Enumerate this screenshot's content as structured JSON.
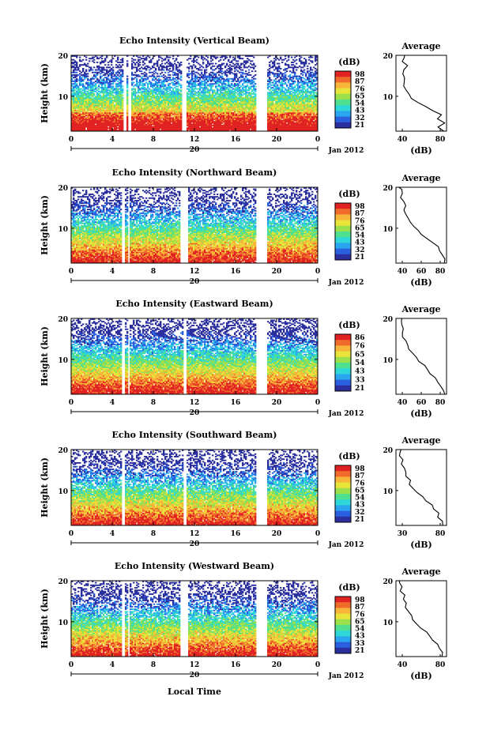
{
  "figure": {
    "xlabel": "Local Time"
  },
  "chart_data": [
    {
      "type": "heatmap",
      "title": "Echo Intensity (Vertical Beam)",
      "ylabel": "Height (km)",
      "xticks": [
        "0",
        "4",
        "8",
        "12",
        "16",
        "20",
        "0"
      ],
      "yticks": [
        "10",
        "20"
      ],
      "date_tick": "20",
      "date_label": "Jan 2012",
      "xlim": [
        0,
        24
      ],
      "ylim": [
        1.5,
        20
      ],
      "gaps": [
        [
          5.1,
          5.35
        ],
        [
          5.55,
          5.8
        ],
        [
          10.7,
          11.3
        ],
        [
          18.0,
          19.0
        ]
      ],
      "cbar": {
        "label": "(dB)",
        "ticks": [
          "98",
          "87",
          "76",
          "65",
          "54",
          "43",
          "32",
          "21"
        ]
      },
      "avg": {
        "title": "Average",
        "xlabel": "(dB)",
        "xticks": [
          "40",
          "80"
        ],
        "xlim": [
          30,
          90
        ],
        "yticks": [
          "10",
          "20"
        ],
        "heights": [
          1.5,
          2.5,
          3.5,
          4.5,
          5.5,
          6.5,
          7.5,
          8.5,
          9.5,
          10.5,
          11.5,
          12.5,
          13.5,
          14.5,
          15.5,
          16.5,
          17.5,
          18.5,
          19.5,
          20
        ],
        "values": [
          85,
          80,
          86,
          78,
          84,
          75,
          66,
          56,
          48,
          44,
          42,
          41,
          40,
          40,
          39,
          41,
          42,
          39,
          38,
          40
        ]
      }
    },
    {
      "type": "heatmap",
      "title": "Echo Intensity (Northward Beam)",
      "ylabel": "Height (km)",
      "xticks": [
        "0",
        "4",
        "8",
        "12",
        "16",
        "20",
        "0"
      ],
      "yticks": [
        "10",
        "20"
      ],
      "date_tick": "20",
      "date_label": "Jan 2012",
      "xlim": [
        0,
        24
      ],
      "ylim": [
        1.5,
        20
      ],
      "gaps": [
        [
          4.95,
          5.2
        ],
        [
          5.5,
          5.7
        ],
        [
          10.6,
          11.4
        ],
        [
          18.0,
          19.0
        ]
      ],
      "cbar": {
        "label": "(dB)",
        "ticks": [
          "98",
          "87",
          "76",
          "65",
          "54",
          "43",
          "32",
          "21"
        ]
      },
      "avg": {
        "title": "Average",
        "xlabel": "(dB)",
        "xticks": [
          "40",
          "60",
          "80"
        ],
        "xlim": [
          30,
          80
        ],
        "yticks": [
          "10",
          "20"
        ],
        "heights": [
          1.5,
          2.5,
          3.5,
          4.5,
          5.5,
          6.5,
          7.5,
          8.5,
          9.5,
          10.5,
          11.5,
          12.5,
          13.5,
          14.5,
          15.5,
          16.5,
          17.5,
          18.5,
          19.5,
          20
        ],
        "values": [
          79,
          78,
          74,
          72,
          70,
          66,
          62,
          57,
          53,
          49,
          46,
          43,
          41,
          39,
          38,
          37,
          36,
          35,
          34,
          34
        ]
      }
    },
    {
      "type": "heatmap",
      "title": "Echo Intensity (Eastward Beam)",
      "ylabel": "Height (km)",
      "xticks": [
        "0",
        "4",
        "8",
        "12",
        "16",
        "20",
        "0"
      ],
      "yticks": [
        "10",
        "20"
      ],
      "date_tick": "20",
      "date_label": "Jan 2012",
      "xlim": [
        0,
        24
      ],
      "ylim": [
        1.5,
        20
      ],
      "gaps": [
        [
          5.0,
          5.25
        ],
        [
          5.55,
          5.75
        ],
        [
          11.0,
          11.3
        ],
        [
          18.0,
          19.0
        ]
      ],
      "cbar": {
        "label": "(dB)",
        "ticks": [
          "86",
          "76",
          "65",
          "54",
          "43",
          "33",
          "21"
        ]
      },
      "avg": {
        "title": "Average",
        "xlabel": "(dB)",
        "xticks": [
          "40",
          "60",
          "80"
        ],
        "xlim": [
          30,
          80
        ],
        "yticks": [
          "10",
          "20"
        ],
        "heights": [
          1.5,
          2.5,
          3.5,
          4.5,
          5.5,
          6.5,
          7.5,
          8.5,
          9.5,
          10.5,
          11.5,
          12.5,
          13.5,
          14.5,
          15.5,
          16.5,
          17.5,
          18.5,
          19.5,
          20
        ],
        "values": [
          78,
          77,
          74,
          72,
          68,
          65,
          61,
          57,
          53,
          49,
          46,
          43,
          41,
          39,
          38,
          37,
          36,
          35,
          34,
          34
        ]
      }
    },
    {
      "type": "heatmap",
      "title": "Echo Intensity (Southward Beam)",
      "ylabel": "Height (km)",
      "xticks": [
        "0",
        "4",
        "8",
        "12",
        "16",
        "20",
        "0"
      ],
      "yticks": [
        "10",
        "20"
      ],
      "date_tick": "20",
      "date_label": "Jan 2012",
      "xlim": [
        0,
        24
      ],
      "ylim": [
        1.5,
        20
      ],
      "gaps": [
        [
          4.95,
          5.2
        ],
        [
          11.0,
          11.3
        ],
        [
          18.0,
          19.0
        ]
      ],
      "cbar": {
        "label": "(dB)",
        "ticks": [
          "98",
          "87",
          "76",
          "65",
          "54",
          "43",
          "32",
          "21"
        ]
      },
      "avg": {
        "title": "Average",
        "xlabel": "(dB)",
        "xticks": [
          "30",
          "80"
        ],
        "xlim": [
          30,
          80
        ],
        "yticks": [
          "10",
          "20"
        ],
        "heights": [
          1.5,
          2.5,
          3.5,
          4.5,
          5.5,
          6.5,
          7.5,
          8.5,
          9.5,
          10.5,
          11.5,
          12.5,
          13.5,
          14.5,
          15.5,
          16.5,
          17.5,
          18.5,
          19.5,
          20
        ],
        "values": [
          77,
          76,
          73,
          71,
          68,
          64,
          60,
          56,
          52,
          48,
          45,
          43,
          41,
          40,
          38,
          37,
          36,
          35,
          34,
          34
        ]
      }
    },
    {
      "type": "heatmap",
      "title": "Echo Intensity (Westward Beam)",
      "ylabel": "Height (km)",
      "xticks": [
        "0",
        "4",
        "8",
        "12",
        "16",
        "20",
        "0"
      ],
      "yticks": [
        "10",
        "20"
      ],
      "date_tick": "20",
      "date_label": "Jan 2012",
      "xlim": [
        0,
        24
      ],
      "ylim": [
        1.5,
        20
      ],
      "gaps": [
        [
          4.95,
          5.2
        ],
        [
          5.55,
          5.75
        ],
        [
          10.6,
          11.4
        ],
        [
          18.0,
          19.0
        ]
      ],
      "cbar": {
        "label": "(dB)",
        "ticks": [
          "98",
          "87",
          "76",
          "65",
          "54",
          "43",
          "33",
          "21"
        ]
      },
      "avg": {
        "title": "Average",
        "xlabel": "(dB)",
        "xticks": [
          "40",
          "80"
        ],
        "xlim": [
          30,
          80
        ],
        "yticks": [
          "10",
          "20"
        ],
        "heights": [
          1.5,
          2.5,
          3.5,
          4.5,
          5.5,
          6.5,
          7.5,
          8.5,
          9.5,
          10.5,
          11.5,
          12.5,
          13.5,
          14.5,
          15.5,
          16.5,
          17.5,
          18.5,
          19.5,
          20
        ],
        "values": [
          77,
          76,
          74,
          71,
          68,
          64,
          60,
          56,
          52,
          48,
          45,
          43,
          41,
          39,
          38,
          37,
          36,
          35,
          34,
          34
        ]
      }
    }
  ],
  "colors": {
    "scale": [
      "#2b2f9e",
      "#2a5fe0",
      "#2aa6f0",
      "#2fd8d8",
      "#4ee08f",
      "#9be04a",
      "#e8e43a",
      "#f7b53a",
      "#f06a2c",
      "#e02222"
    ]
  }
}
